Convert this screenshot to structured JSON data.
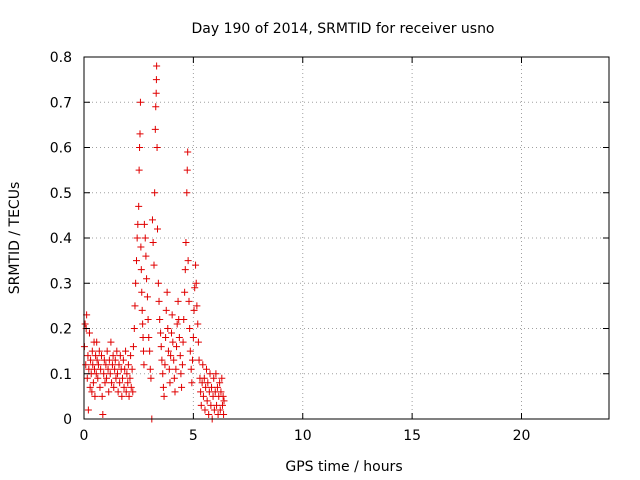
{
  "chart_data": {
    "type": "scatter",
    "title": "Day 190 of 2014, SRMTID for receiver usno",
    "xlabel": "GPS time / hours",
    "ylabel": "SRMTID / TECUs",
    "xlim": [
      0,
      24
    ],
    "ylim": [
      0,
      0.8
    ],
    "x_ticks": [
      0,
      5,
      10,
      15,
      20
    ],
    "y_ticks": [
      0,
      0.1,
      0.2,
      0.3,
      0.4,
      0.5,
      0.6,
      0.7,
      0.8
    ],
    "x_tick_labels": [
      "0",
      "5",
      "10",
      "15",
      "20"
    ],
    "y_tick_labels": [
      "0",
      "0.1",
      "0.2",
      "0.3",
      "0.4",
      "0.5",
      "0.6",
      "0.7",
      "0.8"
    ],
    "grid": true,
    "marker": "plus",
    "marker_color": "#e00000",
    "series": [
      {
        "points": [
          [
            0.02,
            0.16
          ],
          [
            0.05,
            0.21
          ],
          [
            0.08,
            0.12
          ],
          [
            0.1,
            0.2
          ],
          [
            0.12,
            0.23
          ],
          [
            0.15,
            0.09
          ],
          [
            0.18,
            0.14
          ],
          [
            0.2,
            0.02
          ],
          [
            0.22,
            0.11
          ],
          [
            0.25,
            0.19
          ],
          [
            0.28,
            0.07
          ],
          [
            0.3,
            0.13
          ],
          [
            0.33,
            0.1
          ],
          [
            0.36,
            0.06
          ],
          [
            0.38,
            0.15
          ],
          [
            0.4,
            0.12
          ],
          [
            0.43,
            0.08
          ],
          [
            0.46,
            0.17
          ],
          [
            0.48,
            0.11
          ],
          [
            0.5,
            0.05
          ],
          [
            0.53,
            0.14
          ],
          [
            0.56,
            0.1
          ],
          [
            0.58,
            0.17
          ],
          [
            0.6,
            0.13
          ],
          [
            0.63,
            0.09
          ],
          [
            0.66,
            0.12
          ],
          [
            0.7,
            0.15
          ],
          [
            0.73,
            0.07
          ],
          [
            0.76,
            0.11
          ],
          [
            0.8,
            0.14
          ],
          [
            0.83,
            0.05
          ],
          [
            0.86,
            0.01
          ],
          [
            0.9,
            0.1
          ],
          [
            0.93,
            0.13
          ],
          [
            0.96,
            0.08
          ],
          [
            1.0,
            0.12
          ],
          [
            1.03,
            0.09
          ],
          [
            1.06,
            0.15
          ],
          [
            1.1,
            0.11
          ],
          [
            1.13,
            0.06
          ],
          [
            1.16,
            0.13
          ],
          [
            1.2,
            0.1
          ],
          [
            1.23,
            0.17
          ],
          [
            1.26,
            0.08
          ],
          [
            1.3,
            0.12
          ],
          [
            1.33,
            0.14
          ],
          [
            1.36,
            0.07
          ],
          [
            1.4,
            0.11
          ],
          [
            1.43,
            0.13
          ],
          [
            1.46,
            0.09
          ],
          [
            1.5,
            0.15
          ],
          [
            1.53,
            0.1
          ],
          [
            1.56,
            0.06
          ],
          [
            1.6,
            0.12
          ],
          [
            1.63,
            0.08
          ],
          [
            1.66,
            0.14
          ],
          [
            1.7,
            0.11
          ],
          [
            1.73,
            0.05
          ],
          [
            1.76,
            0.09
          ],
          [
            1.8,
            0.13
          ],
          [
            1.83,
            0.07
          ],
          [
            1.86,
            0.11
          ],
          [
            1.9,
            0.15
          ],
          [
            1.93,
            0.06
          ],
          [
            1.96,
            0.1
          ],
          [
            2.0,
            0.08
          ],
          [
            2.03,
            0.12
          ],
          [
            2.06,
            0.05
          ],
          [
            2.1,
            0.09
          ],
          [
            2.13,
            0.14
          ],
          [
            2.16,
            0.07
          ],
          [
            2.2,
            0.11
          ],
          [
            2.23,
            0.06
          ],
          [
            2.26,
            0.16
          ],
          [
            2.3,
            0.2
          ],
          [
            2.33,
            0.25
          ],
          [
            2.36,
            0.3
          ],
          [
            2.4,
            0.35
          ],
          [
            2.43,
            0.4
          ],
          [
            2.46,
            0.43
          ],
          [
            2.5,
            0.47
          ],
          [
            2.52,
            0.55
          ],
          [
            2.54,
            0.6
          ],
          [
            2.56,
            0.63
          ],
          [
            2.58,
            0.7
          ],
          [
            2.6,
            0.38
          ],
          [
            2.62,
            0.33
          ],
          [
            2.64,
            0.28
          ],
          [
            2.66,
            0.24
          ],
          [
            2.68,
            0.21
          ],
          [
            2.7,
            0.18
          ],
          [
            2.72,
            0.15
          ],
          [
            2.74,
            0.12
          ],
          [
            2.76,
            0.43
          ],
          [
            2.8,
            0.4
          ],
          [
            2.83,
            0.36
          ],
          [
            2.86,
            0.31
          ],
          [
            2.9,
            0.27
          ],
          [
            2.93,
            0.22
          ],
          [
            2.96,
            0.18
          ],
          [
            3.0,
            0.15
          ],
          [
            3.03,
            0.11
          ],
          [
            3.06,
            0.09
          ],
          [
            3.1,
            0.0
          ],
          [
            3.13,
            0.44
          ],
          [
            3.16,
            0.39
          ],
          [
            3.2,
            0.34
          ],
          [
            3.23,
            0.5
          ],
          [
            3.26,
            0.64
          ],
          [
            3.28,
            0.69
          ],
          [
            3.3,
            0.72
          ],
          [
            3.31,
            0.75
          ],
          [
            3.32,
            0.78
          ],
          [
            3.34,
            0.6
          ],
          [
            3.36,
            0.42
          ],
          [
            3.4,
            0.3
          ],
          [
            3.43,
            0.26
          ],
          [
            3.46,
            0.22
          ],
          [
            3.5,
            0.19
          ],
          [
            3.53,
            0.16
          ],
          [
            3.56,
            0.13
          ],
          [
            3.6,
            0.1
          ],
          [
            3.63,
            0.07
          ],
          [
            3.66,
            0.05
          ],
          [
            3.7,
            0.12
          ],
          [
            3.73,
            0.18
          ],
          [
            3.76,
            0.24
          ],
          [
            3.8,
            0.28
          ],
          [
            3.83,
            0.2
          ],
          [
            3.86,
            0.15
          ],
          [
            3.9,
            0.11
          ],
          [
            3.93,
            0.08
          ],
          [
            3.96,
            0.14
          ],
          [
            4.0,
            0.19
          ],
          [
            4.03,
            0.23
          ],
          [
            4.06,
            0.17
          ],
          [
            4.1,
            0.13
          ],
          [
            4.13,
            0.09
          ],
          [
            4.16,
            0.06
          ],
          [
            4.2,
            0.11
          ],
          [
            4.23,
            0.16
          ],
          [
            4.26,
            0.21
          ],
          [
            4.3,
            0.26
          ],
          [
            4.33,
            0.22
          ],
          [
            4.36,
            0.18
          ],
          [
            4.4,
            0.14
          ],
          [
            4.43,
            0.1
          ],
          [
            4.46,
            0.07
          ],
          [
            4.5,
            0.12
          ],
          [
            4.53,
            0.17
          ],
          [
            4.56,
            0.22
          ],
          [
            4.6,
            0.28
          ],
          [
            4.63,
            0.33
          ],
          [
            4.66,
            0.39
          ],
          [
            4.7,
            0.5
          ],
          [
            4.72,
            0.55
          ],
          [
            4.74,
            0.59
          ],
          [
            4.76,
            0.35
          ],
          [
            4.8,
            0.26
          ],
          [
            4.83,
            0.2
          ],
          [
            4.86,
            0.15
          ],
          [
            4.9,
            0.11
          ],
          [
            4.93,
            0.08
          ],
          [
            4.96,
            0.13
          ],
          [
            5.0,
            0.18
          ],
          [
            5.03,
            0.24
          ],
          [
            5.06,
            0.29
          ],
          [
            5.1,
            0.34
          ],
          [
            5.13,
            0.3
          ],
          [
            5.16,
            0.25
          ],
          [
            5.2,
            0.21
          ],
          [
            5.23,
            0.17
          ],
          [
            5.26,
            0.13
          ],
          [
            5.3,
            0.09
          ],
          [
            5.33,
            0.06
          ],
          [
            5.36,
            0.03
          ],
          [
            5.4,
            0.08
          ],
          [
            5.43,
            0.12
          ],
          [
            5.46,
            0.05
          ],
          [
            5.5,
            0.09
          ],
          [
            5.53,
            0.02
          ],
          [
            5.56,
            0.07
          ],
          [
            5.6,
            0.11
          ],
          [
            5.63,
            0.04
          ],
          [
            5.66,
            0.08
          ],
          [
            5.7,
            0.01
          ],
          [
            5.73,
            0.06
          ],
          [
            5.76,
            0.1
          ],
          [
            5.8,
            0.03
          ],
          [
            5.83,
            0.07
          ],
          [
            5.86,
            0.0
          ],
          [
            5.9,
            0.05
          ],
          [
            5.93,
            0.09
          ],
          [
            5.96,
            0.02
          ],
          [
            6.0,
            0.06
          ],
          [
            6.03,
            0.1
          ],
          [
            6.06,
            0.03
          ],
          [
            6.1,
            0.07
          ],
          [
            6.13,
            0.01
          ],
          [
            6.16,
            0.05
          ],
          [
            6.2,
            0.08
          ],
          [
            6.23,
            0.02
          ],
          [
            6.26,
            0.06
          ],
          [
            6.3,
            0.09
          ],
          [
            6.33,
            0.03
          ],
          [
            6.36,
            0.05
          ],
          [
            6.38,
            0.01
          ],
          [
            6.4,
            0.04
          ]
        ]
      }
    ]
  }
}
